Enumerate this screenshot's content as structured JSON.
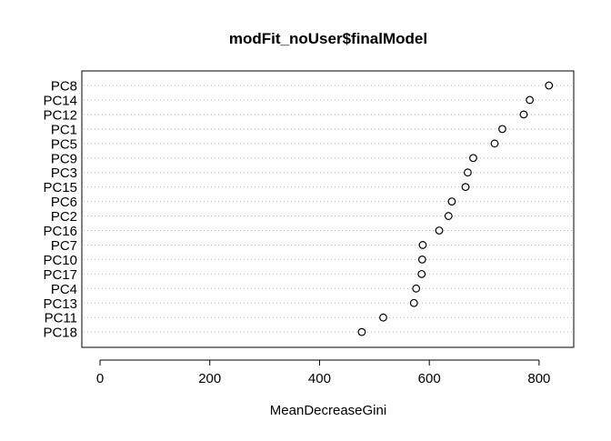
{
  "chart_data": {
    "type": "dotchart",
    "title": "modFit_noUser$finalModel",
    "xlabel": "MeanDecreaseGini",
    "ylabel": "",
    "xlim": [
      0,
      830
    ],
    "xticks": [
      0,
      200,
      400,
      600,
      800
    ],
    "grid": "dotted horizontal guide lines",
    "legend": "none",
    "categories": [
      "PC8",
      "PC14",
      "PC12",
      "PC1",
      "PC5",
      "PC9",
      "PC3",
      "PC15",
      "PC6",
      "PC2",
      "PC16",
      "PC7",
      "PC10",
      "PC17",
      "PC4",
      "PC13",
      "PC11",
      "PC18"
    ],
    "values": [
      818,
      783,
      772,
      733,
      719,
      680,
      670,
      666,
      641,
      635,
      618,
      588,
      587,
      586,
      576,
      572,
      516,
      477
    ]
  }
}
